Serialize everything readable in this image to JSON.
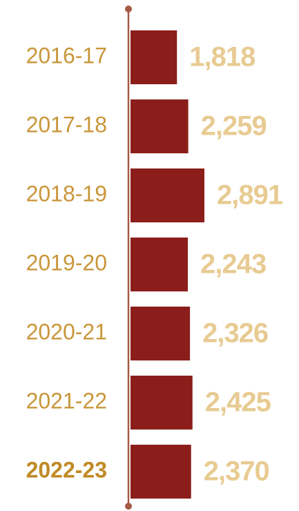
{
  "chart_data": {
    "type": "bar",
    "orientation": "horizontal",
    "categories": [
      "2016-17",
      "2017-18",
      "2018-19",
      "2019-20",
      "2020-21",
      "2021-22",
      "2022-23"
    ],
    "values": [
      1818,
      2259,
      2891,
      2243,
      2326,
      2425,
      2370
    ],
    "value_labels": [
      "1,818",
      "2,259",
      "2,891",
      "2,243",
      "2,326",
      "2,425",
      "2,370"
    ],
    "color": "#8b1e1a"
  }
}
